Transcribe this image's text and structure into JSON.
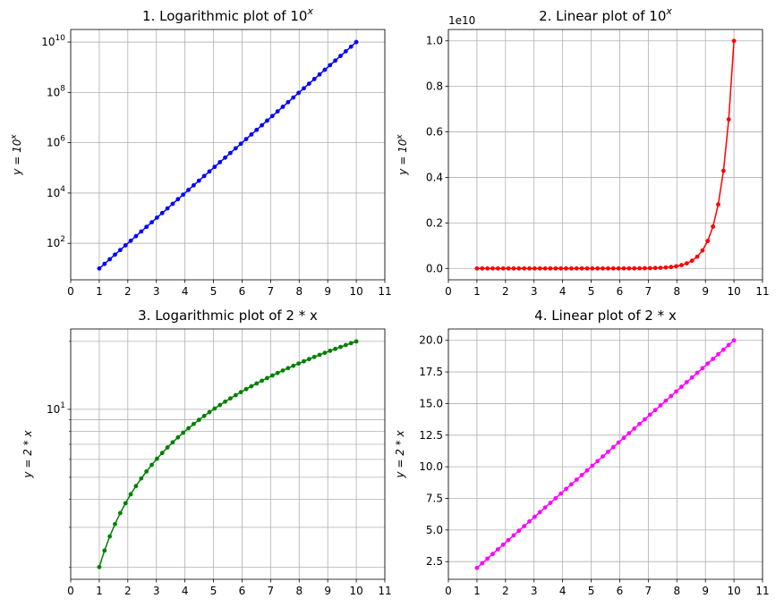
{
  "chart_data": [
    {
      "type": "line",
      "title": "1. Logarithmic plot of 10^x",
      "title_prefix": "1. Logarithmic plot of 10",
      "title_sup": "x",
      "ylabel": "y = 10^x",
      "ylabel_main": "y = 10",
      "ylabel_sup": "x",
      "yscale": "log",
      "func": "pow10",
      "color": "#0000ff",
      "marker": "circle",
      "grid": true,
      "xlim": [
        0,
        11
      ],
      "ylim_log10": [
        0.55,
        10.5
      ],
      "x_range": [
        1,
        10
      ],
      "n_points": 50,
      "x_ticks": [
        "0",
        "1",
        "2",
        "3",
        "4",
        "5",
        "6",
        "7",
        "8",
        "9",
        "10",
        "11"
      ],
      "y_ticks": [
        {
          "value": 100,
          "base": "10",
          "exp": "2"
        },
        {
          "value": 10000,
          "base": "10",
          "exp": "4"
        },
        {
          "value": 1000000,
          "base": "10",
          "exp": "6"
        },
        {
          "value": 100000000,
          "base": "10",
          "exp": "8"
        },
        {
          "value": 10000000000,
          "base": "10",
          "exp": "10"
        }
      ],
      "minor_y_grid": false
    },
    {
      "type": "line",
      "title": "2. Linear plot of 10^x",
      "title_prefix": "2. Linear plot of 10",
      "title_sup": "x",
      "ylabel": "y = 10^x",
      "ylabel_main": "y = 10",
      "ylabel_sup": "x",
      "yscale": "linear",
      "func": "pow10",
      "color": "#ff0000",
      "marker": "circle",
      "grid": true,
      "xlim": [
        0,
        11
      ],
      "ylim": [
        -0.05,
        1.05
      ],
      "y_scale_factor": 10000000000,
      "offset_text": "1e10",
      "x_range": [
        1,
        10
      ],
      "n_points": 50,
      "x_ticks": [
        "0",
        "1",
        "2",
        "3",
        "4",
        "5",
        "6",
        "7",
        "8",
        "9",
        "10",
        "11"
      ],
      "y_ticks": [
        {
          "value": 0.0,
          "label": "0.0"
        },
        {
          "value": 0.2,
          "label": "0.2"
        },
        {
          "value": 0.4,
          "label": "0.4"
        },
        {
          "value": 0.6,
          "label": "0.6"
        },
        {
          "value": 0.8,
          "label": "0.8"
        },
        {
          "value": 1.0,
          "label": "1.0"
        }
      ]
    },
    {
      "type": "line",
      "title": "3. Logarithmic plot of 2 * x",
      "title_prefix": "3. Logarithmic plot of 2 * x",
      "ylabel": "y = 2 * x",
      "ylabel_main": "y = 2 * x",
      "yscale": "log",
      "func": "double",
      "color": "#008000",
      "marker": "circle",
      "grid": true,
      "xlim": [
        0,
        11
      ],
      "ylim_log10": [
        0.247,
        1.356
      ],
      "x_range": [
        1,
        10
      ],
      "n_points": 50,
      "x_ticks": [
        "0",
        "1",
        "2",
        "3",
        "4",
        "5",
        "6",
        "7",
        "8",
        "9",
        "10",
        "11"
      ],
      "y_ticks": [
        {
          "value": 10,
          "base": "10",
          "exp": "1"
        }
      ],
      "minor_y_grid": true,
      "minor_y_values": [
        2,
        3,
        4,
        5,
        6,
        7,
        8,
        9,
        20
      ]
    },
    {
      "type": "line",
      "title": "4. Linear plot of 2 * x",
      "title_prefix": "4. Linear plot of 2 * x",
      "ylabel": "y = 2 * x",
      "ylabel_main": "y = 2 * x",
      "yscale": "linear",
      "func": "double",
      "color": "#ff00ff",
      "marker": "circle",
      "grid": true,
      "xlim": [
        0,
        11
      ],
      "ylim": [
        1.1,
        20.9
      ],
      "x_range": [
        1,
        10
      ],
      "n_points": 50,
      "x_ticks": [
        "0",
        "1",
        "2",
        "3",
        "4",
        "5",
        "6",
        "7",
        "8",
        "9",
        "10",
        "11"
      ],
      "y_ticks": [
        {
          "value": 2.5,
          "label": "2.5"
        },
        {
          "value": 5.0,
          "label": "5.0"
        },
        {
          "value": 7.5,
          "label": "7.5"
        },
        {
          "value": 10.0,
          "label": "10.0"
        },
        {
          "value": 12.5,
          "label": "12.5"
        },
        {
          "value": 15.0,
          "label": "15.0"
        },
        {
          "value": 17.5,
          "label": "17.5"
        },
        {
          "value": 20.0,
          "label": "20.0"
        }
      ]
    }
  ]
}
